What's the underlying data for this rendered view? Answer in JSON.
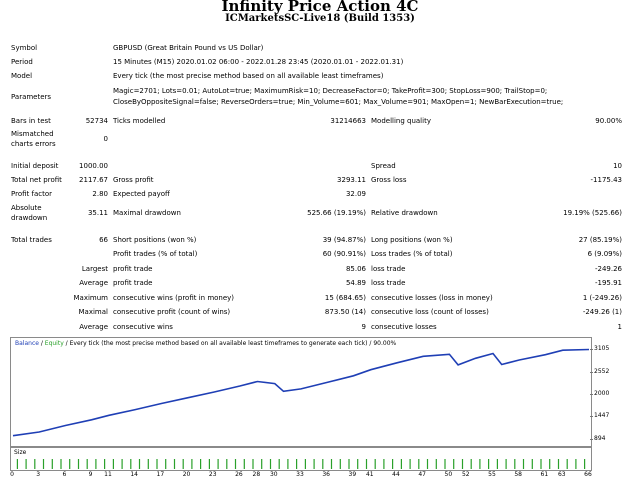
{
  "header": {
    "title": "Infinity Price Action 4C",
    "subtitle": "ICMarketsSC-Live18 (Build 1353)"
  },
  "settings": {
    "symbol_label": "Symbol",
    "symbol_value": "GBPUSD (Great Britain Pound vs US Dollar)",
    "period_label": "Period",
    "period_value": "15 Minutes (M15) 2020.01.02 06:00 - 2022.01.28 23:45 (2020.01.01 - 2022.01.31)",
    "model_label": "Model",
    "model_value": "Every tick (the most precise method based on all available least timeframes)",
    "parameters_label": "Parameters",
    "parameters_line1": "Magic=2701; Lots=0.01; AutoLot=true; MaximumRisk=10; DecreaseFactor=0; TakeProfit=300; StopLoss=900; TrailStop=0;",
    "parameters_line2": "CloseByOppositeSignal=false; ReverseOrders=true; Min_Volume=601; Max_Volume=901; MaxOpen=1; NewBarExecution=true;",
    "bars_label": "Bars in test",
    "bars_value": "52734",
    "ticks_label": "Ticks modelled",
    "ticks_value": "31214663",
    "quality_label": "Modelling quality",
    "quality_value": "90.00%",
    "mismatched_label_1": "Mismatched",
    "mismatched_label_2": "charts errors",
    "mismatched_value": "0"
  },
  "results": {
    "initial_deposit_label": "Initial deposit",
    "initial_deposit_value": "1000.00",
    "spread_label": "Spread",
    "spread_value": "10",
    "total_net_profit_label": "Total net profit",
    "total_net_profit_value": "2117.67",
    "gross_profit_label": "Gross profit",
    "gross_profit_value": "3293.11",
    "gross_loss_label": "Gross loss",
    "gross_loss_value": "-1175.43",
    "profit_factor_label": "Profit factor",
    "profit_factor_value": "2.80",
    "expected_payoff_label": "Expected payoff",
    "expected_payoff_value": "32.09",
    "absolute_drawdown_label_1": "Absolute",
    "absolute_drawdown_label_2": "drawdown",
    "absolute_drawdown_value": "35.11",
    "maximal_drawdown_label": "Maximal drawdown",
    "maximal_drawdown_value": "525.66 (19.19%)",
    "relative_drawdown_label": "Relative drawdown",
    "relative_drawdown_value": "19.19% (525.66)",
    "total_trades_label": "Total trades",
    "total_trades_value": "66",
    "short_positions_label": "Short positions (won %)",
    "short_positions_value": "39 (94.87%)",
    "long_positions_label": "Long positions (won %)",
    "long_positions_value": "27 (85.19%)",
    "profit_trades_label": "Profit trades (% of total)",
    "profit_trades_value": "60 (90.91%)",
    "loss_trades_label": "Loss trades (% of total)",
    "loss_trades_value": "6 (9.09%)",
    "largest_label": "Largest",
    "largest_profit_label": "profit trade",
    "largest_profit_value": "85.06",
    "largest_loss_label": "loss trade",
    "largest_loss_value": "-249.26",
    "average_label": "Average",
    "average_profit_label": "profit trade",
    "average_profit_value": "54.89",
    "average_loss_label": "loss trade",
    "average_loss_value": "-195.91",
    "maximum_label": "Maximum",
    "max_cons_wins_label": "consecutive wins (profit in money)",
    "max_cons_wins_value": "15 (684.65)",
    "max_cons_losses_label": "consecutive losses (loss in money)",
    "max_cons_losses_value": "1 (-249.26)",
    "maximal_label": "Maximal",
    "maximal_cons_profit_label": "consecutive profit (count of wins)",
    "maximal_cons_profit_value": "873.50 (14)",
    "maximal_cons_loss_label": "consecutive loss (count of losses)",
    "maximal_cons_loss_value": "-249.26 (1)",
    "average2_label": "Average",
    "avg_cons_wins_label": "consecutive wins",
    "avg_cons_wins_value": "9",
    "avg_cons_losses_label": "consecutive losses",
    "avg_cons_losses_value": "1"
  },
  "chart_caption": {
    "balance": "Balance",
    "separator": " / ",
    "equity": "Equity",
    "rest": " / Every tick (the most precise method based on all available least timeframes to generate each tick) / 90.00%"
  },
  "size_label": "Size",
  "colors": {
    "balance": "#1f3fb5",
    "equity": "#2aa02a",
    "size_bars": "#2aa02a"
  },
  "chart_data": {
    "type": "line",
    "title": "",
    "xlabel": "",
    "ylabel": "",
    "ylim": [
      894,
      3105
    ],
    "yticks": [
      "3105",
      "2552",
      "2000",
      "1447",
      "894"
    ],
    "xticks": [
      "0",
      "3",
      "6",
      "9",
      "11",
      "14",
      "17",
      "20",
      "23",
      "26",
      "28",
      "30",
      "33",
      "36",
      "39",
      "41",
      "44",
      "47",
      "50",
      "52",
      "55",
      "58",
      "61",
      "63",
      "66"
    ],
    "series": [
      {
        "name": "Balance",
        "x": [
          0,
          3,
          6,
          9,
          11,
          14,
          17,
          20,
          23,
          26,
          28,
          30,
          31,
          33,
          36,
          39,
          41,
          44,
          47,
          50,
          51,
          53,
          55,
          56,
          58,
          61,
          63,
          66
        ],
        "values": [
          1000,
          1090,
          1250,
          1390,
          1500,
          1640,
          1790,
          1930,
          2070,
          2220,
          2330,
          2280,
          2090,
          2150,
          2310,
          2470,
          2620,
          2790,
          2950,
          3000,
          2740,
          2900,
          3020,
          2750,
          2860,
          2990,
          3100,
          3117
        ]
      }
    ],
    "size_bars": 66
  }
}
